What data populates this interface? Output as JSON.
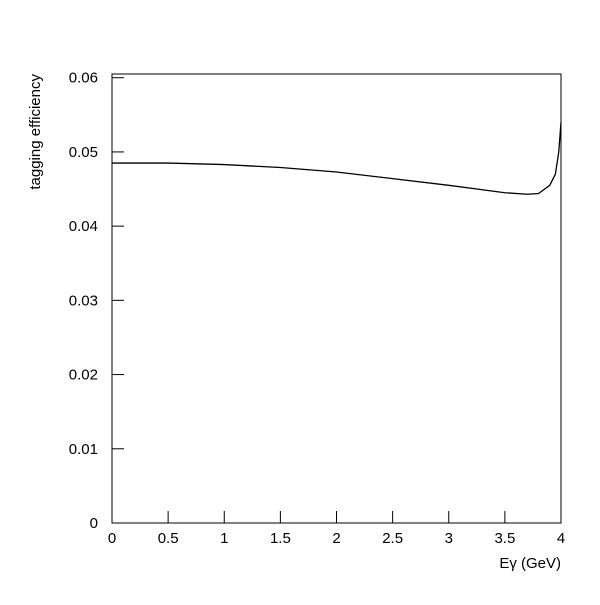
{
  "chart_data": {
    "type": "line",
    "x_label": "Eγ (GeV)",
    "y_label": "tagging efficiency",
    "x": [
      0,
      0.5,
      1,
      1.5,
      2,
      2.5,
      3,
      3.25,
      3.5,
      3.7,
      3.8,
      3.9,
      3.95,
      3.98,
      4
    ],
    "series": [
      {
        "name": "tagging efficiency",
        "color": "#000000",
        "values": [
          0.0485,
          0.0485,
          0.0483,
          0.0479,
          0.0473,
          0.0464,
          0.0455,
          0.045,
          0.0445,
          0.0443,
          0.0444,
          0.0455,
          0.047,
          0.05,
          0.054
        ]
      }
    ],
    "xlim": [
      0,
      4
    ],
    "ylim": [
      0,
      0.0605
    ],
    "xticks": [
      0,
      0.5,
      1,
      1.5,
      2,
      2.5,
      3,
      3.5,
      4
    ],
    "yticks": [
      0,
      0.01,
      0.02,
      0.03,
      0.04,
      0.05,
      0.06
    ],
    "grid": false
  }
}
